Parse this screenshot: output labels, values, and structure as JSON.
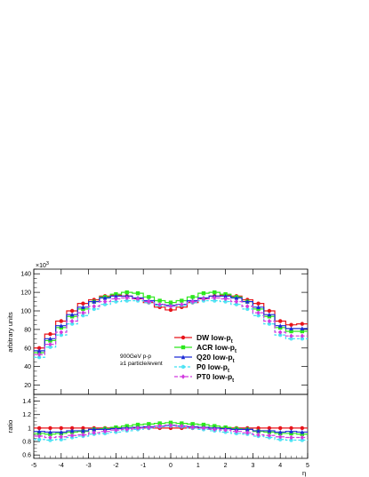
{
  "chart_data": [
    {
      "type": "line",
      "panel": "main",
      "ylabel": "arbitrary units",
      "y_exponent_label": "×10",
      "y_exponent_power": "3",
      "ylim": [
        10,
        145
      ],
      "xlim": [
        -5,
        5
      ],
      "yticks": [
        "20",
        "40",
        "60",
        "80",
        "100",
        "120",
        "140"
      ],
      "annotation_line1": "900GeV p-p",
      "annotation_line2": "≥1 particle/event",
      "bin_edges": [
        -5.0,
        -4.6,
        -4.2,
        -3.8,
        -3.4,
        -3.0,
        -2.6,
        -2.2,
        -1.8,
        -1.4,
        -1.0,
        -0.6,
        -0.2,
        0.2,
        0.6,
        1.0,
        1.4,
        1.8,
        2.2,
        2.6,
        3.0,
        3.4,
        3.8,
        4.2,
        4.6,
        5.0
      ],
      "bin_centers": [
        -4.8,
        -4.4,
        -4.0,
        -3.6,
        -3.2,
        -2.8,
        -2.4,
        -2.0,
        -1.6,
        -1.2,
        -0.8,
        -0.4,
        0.0,
        0.4,
        0.8,
        1.2,
        1.6,
        2.0,
        2.4,
        2.8,
        3.2,
        3.6,
        4.0,
        4.4,
        4.8
      ],
      "series": [
        {
          "name": "DW low-p",
          "subscript": "t",
          "color": "#e8141b",
          "marker": "circle",
          "dash": "",
          "values": [
            60,
            75,
            89,
            100,
            108,
            112,
            116,
            117,
            116,
            113,
            109,
            104,
            101,
            104,
            109,
            113,
            116,
            117,
            116,
            112,
            108,
            100,
            89,
            85,
            86
          ]
        },
        {
          "name": "ACR low-p",
          "subscript": "t",
          "color": "#2ce81c",
          "marker": "square",
          "dash": "",
          "values": [
            55,
            68,
            82,
            94,
            102,
            110,
            115,
            118,
            120,
            119,
            115,
            111,
            109,
            111,
            115,
            119,
            120,
            118,
            115,
            110,
            102,
            94,
            82,
            78,
            78
          ]
        },
        {
          "name": "Q20 low-p",
          "subscript": "t",
          "color": "#1c2ad6",
          "marker": "triangle",
          "dash": "",
          "values": [
            57,
            70,
            84,
            96,
            104,
            110,
            114,
            116,
            116,
            114,
            111,
            107,
            106,
            107,
            111,
            114,
            116,
            116,
            114,
            110,
            104,
            96,
            84,
            81,
            81
          ]
        },
        {
          "name": "P0 low-p",
          "subscript": "t",
          "color": "#3ce0f2",
          "marker": "circle-open",
          "dash": "3,2",
          "values": [
            50,
            61,
            74,
            86,
            95,
            102,
            107,
            110,
            111,
            111,
            109,
            106,
            105,
            106,
            109,
            111,
            111,
            110,
            107,
            102,
            95,
            86,
            74,
            70,
            70
          ]
        },
        {
          "name": "PT0 low-p",
          "subscript": "t",
          "color": "#d23ae0",
          "marker": "diamond",
          "dash": "4,2",
          "values": [
            53,
            64,
            77,
            89,
            98,
            105,
            110,
            113,
            114,
            113,
            110,
            107,
            105,
            107,
            110,
            113,
            114,
            113,
            110,
            105,
            98,
            89,
            77,
            73,
            73
          ]
        }
      ]
    },
    {
      "type": "line",
      "panel": "ratio",
      "ylabel": "ratio",
      "xlabel": "η",
      "ylim": [
        0.55,
        1.5
      ],
      "xlim": [
        -5,
        5
      ],
      "yticks": [
        "0.6",
        "0.8",
        "1",
        "1.2",
        "1.4"
      ],
      "xticks": [
        "-5",
        "-4",
        "-3",
        "-2",
        "-1",
        "0",
        "1",
        "2",
        "3",
        "4",
        "5"
      ],
      "series": [
        {
          "name": "DW low-p",
          "values": [
            1.0,
            1.0,
            1.0,
            1.0,
            1.0,
            1.0,
            1.0,
            1.0,
            1.0,
            1.0,
            1.0,
            1.0,
            1.0,
            1.0,
            1.0,
            1.0,
            1.0,
            1.0,
            1.0,
            1.0,
            1.0,
            1.0,
            1.0,
            1.0,
            1.0
          ]
        },
        {
          "name": "ACR low-p",
          "values": [
            0.92,
            0.91,
            0.92,
            0.94,
            0.95,
            0.98,
            0.99,
            1.01,
            1.03,
            1.05,
            1.06,
            1.07,
            1.08,
            1.07,
            1.06,
            1.05,
            1.03,
            1.01,
            0.99,
            0.98,
            0.95,
            0.94,
            0.92,
            0.92,
            0.91
          ]
        },
        {
          "name": "Q20 low-p",
          "values": [
            0.95,
            0.94,
            0.94,
            0.96,
            0.96,
            0.98,
            0.98,
            0.99,
            1.0,
            1.01,
            1.02,
            1.03,
            1.04,
            1.03,
            1.02,
            1.01,
            1.0,
            0.99,
            0.98,
            0.98,
            0.96,
            0.96,
            0.94,
            0.95,
            0.94
          ]
        },
        {
          "name": "P0 low-p",
          "values": [
            0.83,
            0.82,
            0.83,
            0.86,
            0.88,
            0.91,
            0.92,
            0.94,
            0.96,
            0.98,
            1.0,
            1.02,
            1.03,
            1.02,
            1.0,
            0.98,
            0.96,
            0.94,
            0.92,
            0.91,
            0.88,
            0.86,
            0.83,
            0.82,
            0.82
          ]
        },
        {
          "name": "PT0 low-p",
          "values": [
            0.88,
            0.86,
            0.87,
            0.89,
            0.9,
            0.93,
            0.95,
            0.97,
            0.98,
            1.0,
            1.01,
            1.03,
            1.04,
            1.03,
            1.01,
            1.0,
            0.98,
            0.97,
            0.95,
            0.93,
            0.9,
            0.89,
            0.87,
            0.86,
            0.86
          ]
        }
      ]
    }
  ]
}
